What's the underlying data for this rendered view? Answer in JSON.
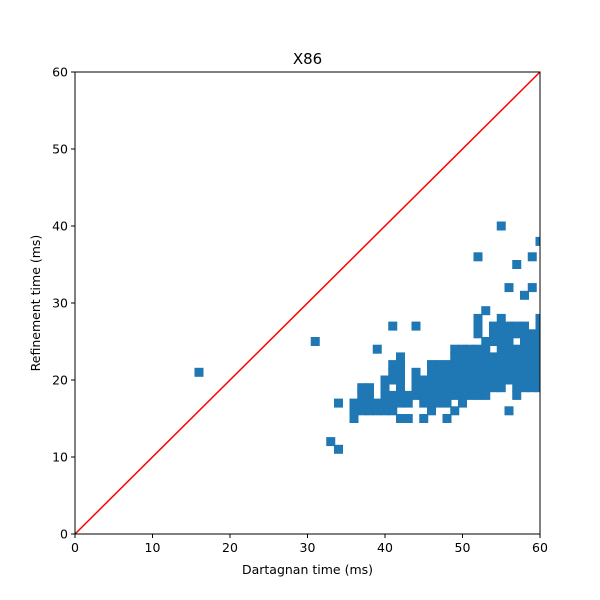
{
  "chart_data": {
    "type": "scatter",
    "title": "X86",
    "xlabel": "Dartagnan time (ms)",
    "ylabel": "Refinement time (ms)",
    "xlim": [
      0,
      60
    ],
    "ylim": [
      0,
      60
    ],
    "xticks": [
      "0",
      "10",
      "20",
      "30",
      "40",
      "50",
      "60"
    ],
    "yticks": [
      "0",
      "10",
      "20",
      "30",
      "40",
      "50",
      "60"
    ],
    "grid": false,
    "reference_line": {
      "x": [
        0,
        60
      ],
      "y": [
        0,
        60
      ],
      "color": "#ff0000"
    },
    "series": [
      {
        "name": "runs",
        "marker": "square",
        "color": "#1f77b4",
        "points": [
          [
            16,
            21
          ],
          [
            31,
            25
          ],
          [
            33,
            12
          ],
          [
            34,
            11
          ],
          [
            34,
            17
          ],
          [
            39,
            24
          ],
          [
            41,
            27
          ],
          [
            44,
            27
          ],
          [
            55,
            40
          ],
          [
            52,
            36
          ],
          [
            57,
            35
          ],
          [
            59,
            36
          ],
          [
            60,
            38
          ],
          [
            56,
            32
          ],
          [
            59,
            32
          ],
          [
            58,
            31
          ],
          [
            52,
            28
          ],
          [
            53,
            29
          ],
          [
            55,
            28
          ],
          [
            60,
            28
          ],
          [
            56,
            16
          ],
          [
            45,
            15
          ],
          [
            48,
            15
          ],
          [
            42,
            15
          ],
          [
            43,
            15
          ],
          [
            36,
            15
          ],
          [
            36,
            16
          ],
          [
            37,
            16
          ],
          [
            38,
            16
          ],
          [
            39,
            16
          ],
          [
            40,
            16
          ],
          [
            41,
            16
          ],
          [
            46,
            16
          ],
          [
            49,
            16
          ],
          [
            36,
            17
          ],
          [
            37,
            17
          ],
          [
            38,
            17
          ],
          [
            39,
            17
          ],
          [
            40,
            17
          ],
          [
            41,
            17
          ],
          [
            42,
            17
          ],
          [
            43,
            17
          ],
          [
            45,
            17
          ],
          [
            46,
            17
          ],
          [
            47,
            17
          ],
          [
            48,
            17
          ],
          [
            50,
            17
          ],
          [
            37,
            18
          ],
          [
            38,
            18
          ],
          [
            40,
            18
          ],
          [
            41,
            18
          ],
          [
            42,
            18
          ],
          [
            43,
            18
          ],
          [
            44,
            18
          ],
          [
            45,
            18
          ],
          [
            46,
            18
          ],
          [
            47,
            18
          ],
          [
            48,
            18
          ],
          [
            49,
            18
          ],
          [
            51,
            18
          ],
          [
            52,
            18
          ],
          [
            37,
            19
          ],
          [
            38,
            19
          ],
          [
            40,
            19
          ],
          [
            42,
            19
          ],
          [
            44,
            19
          ],
          [
            46,
            19
          ],
          [
            47,
            19
          ],
          [
            48,
            19
          ],
          [
            49,
            19
          ],
          [
            50,
            19
          ],
          [
            51,
            19
          ],
          [
            52,
            19
          ],
          [
            53,
            19
          ],
          [
            54,
            19
          ],
          [
            55,
            19
          ],
          [
            57,
            19
          ],
          [
            58,
            19
          ],
          [
            59,
            19
          ],
          [
            60,
            19
          ],
          [
            40,
            20
          ],
          [
            41,
            20
          ],
          [
            42,
            20
          ],
          [
            44,
            20
          ],
          [
            45,
            20
          ],
          [
            46,
            20
          ],
          [
            47,
            20
          ],
          [
            48,
            20
          ],
          [
            49,
            20
          ],
          [
            50,
            20
          ],
          [
            51,
            20
          ],
          [
            52,
            20
          ],
          [
            53,
            20
          ],
          [
            54,
            20
          ],
          [
            55,
            20
          ],
          [
            56,
            20
          ],
          [
            57,
            20
          ],
          [
            58,
            20
          ],
          [
            60,
            20
          ],
          [
            41,
            21
          ],
          [
            42,
            21
          ],
          [
            44,
            21
          ],
          [
            46,
            21
          ],
          [
            47,
            21
          ],
          [
            48,
            21
          ],
          [
            49,
            21
          ],
          [
            50,
            21
          ],
          [
            51,
            21
          ],
          [
            52,
            21
          ],
          [
            53,
            21
          ],
          [
            54,
            21
          ],
          [
            55,
            21
          ],
          [
            56,
            21
          ],
          [
            57,
            21
          ],
          [
            58,
            21
          ],
          [
            59,
            21
          ],
          [
            60,
            21
          ],
          [
            41,
            22
          ],
          [
            42,
            22
          ],
          [
            46,
            22
          ],
          [
            47,
            22
          ],
          [
            48,
            22
          ],
          [
            49,
            22
          ],
          [
            50,
            22
          ],
          [
            51,
            22
          ],
          [
            52,
            22
          ],
          [
            53,
            22
          ],
          [
            54,
            22
          ],
          [
            55,
            22
          ],
          [
            56,
            22
          ],
          [
            57,
            22
          ],
          [
            58,
            22
          ],
          [
            59,
            22
          ],
          [
            60,
            22
          ],
          [
            42,
            23
          ],
          [
            49,
            23
          ],
          [
            50,
            23
          ],
          [
            51,
            23
          ],
          [
            52,
            23
          ],
          [
            53,
            23
          ],
          [
            54,
            23
          ],
          [
            55,
            23
          ],
          [
            56,
            23
          ],
          [
            57,
            23
          ],
          [
            58,
            23
          ],
          [
            59,
            23
          ],
          [
            60,
            23
          ],
          [
            49,
            24
          ],
          [
            50,
            24
          ],
          [
            51,
            24
          ],
          [
            52,
            24
          ],
          [
            53,
            24
          ],
          [
            55,
            24
          ],
          [
            56,
            24
          ],
          [
            57,
            24
          ],
          [
            58,
            24
          ],
          [
            59,
            24
          ],
          [
            60,
            24
          ],
          [
            53,
            25
          ],
          [
            54,
            25
          ],
          [
            55,
            25
          ],
          [
            56,
            25
          ],
          [
            58,
            25
          ],
          [
            59,
            25
          ],
          [
            60,
            25
          ],
          [
            52,
            26
          ],
          [
            54,
            26
          ],
          [
            55,
            26
          ],
          [
            56,
            26
          ],
          [
            57,
            26
          ],
          [
            58,
            26
          ],
          [
            59,
            26
          ],
          [
            60,
            26
          ],
          [
            52,
            27
          ],
          [
            54,
            27
          ],
          [
            55,
            27
          ],
          [
            56,
            27
          ],
          [
            57,
            27
          ],
          [
            58,
            27
          ],
          [
            60,
            27
          ],
          [
            44,
            20
          ],
          [
            45,
            19
          ],
          [
            47,
            18
          ],
          [
            48,
            21
          ],
          [
            50,
            18
          ],
          [
            53,
            18
          ],
          [
            57,
            18
          ],
          [
            59,
            20
          ]
        ]
      }
    ]
  }
}
